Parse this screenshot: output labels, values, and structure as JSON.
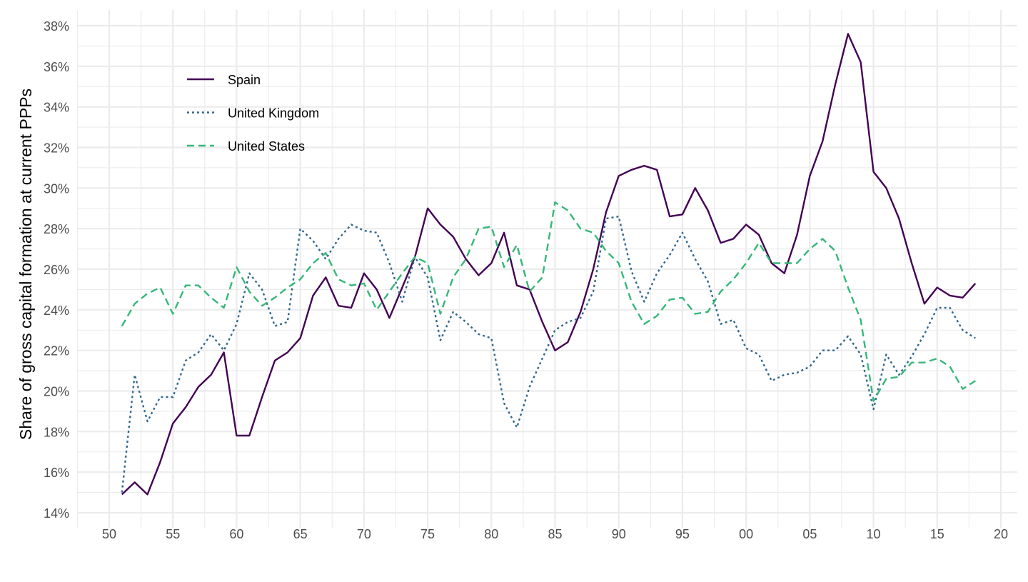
{
  "chart_data": {
    "type": "line",
    "title": "",
    "xlabel": "",
    "ylabel": "Share of gross capital formation at current PPPs",
    "xlim": [
      1948,
      2022
    ],
    "ylim": [
      14,
      38
    ],
    "grid": true,
    "legend_position": "top-left",
    "x_ticks": [
      1950,
      1955,
      1960,
      1965,
      1970,
      1975,
      1980,
      1985,
      1990,
      1995,
      2000,
      2005,
      2010,
      2015,
      2020
    ],
    "x_tick_labels": [
      "50",
      "55",
      "60",
      "65",
      "70",
      "75",
      "80",
      "85",
      "90",
      "95",
      "00",
      "05",
      "10",
      "15",
      "20"
    ],
    "y_ticks": [
      14,
      16,
      18,
      20,
      22,
      24,
      26,
      28,
      30,
      32,
      34,
      36,
      38
    ],
    "y_tick_labels": [
      "14%",
      "16%",
      "18%",
      "20%",
      "22%",
      "24%",
      "26%",
      "28%",
      "30%",
      "32%",
      "34%",
      "36%",
      "38%"
    ],
    "x_start": 1951,
    "series": [
      {
        "name": "Spain",
        "color": "#440154",
        "dash": "solid",
        "values": [
          14.9,
          15.5,
          14.9,
          16.5,
          18.4,
          19.2,
          20.2,
          20.8,
          21.9,
          17.8,
          17.8,
          19.7,
          21.5,
          21.9,
          22.6,
          24.7,
          25.6,
          24.2,
          24.1,
          25.8,
          25.0,
          23.6,
          25.1,
          26.6,
          29.0,
          28.2,
          27.6,
          26.5,
          25.7,
          26.3,
          27.8,
          25.2,
          25.0,
          23.4,
          22.0,
          22.4,
          23.9,
          26.0,
          28.8,
          30.6,
          30.9,
          31.1,
          30.9,
          28.6,
          28.7,
          30.0,
          28.9,
          27.3,
          27.5,
          28.2,
          27.7,
          26.3,
          25.8,
          27.7,
          30.6,
          32.3,
          35.1,
          37.6,
          36.2,
          30.8,
          30.0,
          28.5,
          26.3,
          24.3,
          25.1,
          24.7,
          24.6,
          25.3
        ]
      },
      {
        "name": "United Kingdom",
        "color": "#31688e",
        "dash": "dotted",
        "values": [
          15.0,
          20.8,
          18.5,
          19.7,
          19.7,
          21.5,
          21.9,
          22.8,
          22.0,
          23.3,
          25.8,
          25.0,
          23.2,
          23.4,
          28.0,
          27.4,
          26.5,
          27.5,
          28.2,
          27.9,
          27.8,
          26.3,
          24.4,
          26.6,
          25.6,
          22.5,
          23.9,
          23.4,
          22.8,
          22.6,
          19.4,
          18.2,
          20.2,
          21.6,
          23.0,
          23.4,
          23.6,
          24.9,
          28.5,
          28.6,
          25.9,
          24.4,
          25.8,
          26.7,
          27.8,
          26.5,
          25.4,
          23.3,
          23.5,
          22.1,
          21.8,
          20.5,
          20.8,
          20.9,
          21.2,
          22.0,
          22.0,
          22.7,
          21.8,
          19.1,
          21.8,
          20.8,
          21.7,
          22.8,
          24.1,
          24.1,
          23.0,
          22.6
        ]
      },
      {
        "name": "United States",
        "color": "#35b779",
        "dash": "dashed",
        "values": [
          23.2,
          24.3,
          24.8,
          25.1,
          23.8,
          25.2,
          25.2,
          24.6,
          24.1,
          26.1,
          24.9,
          24.2,
          24.6,
          25.1,
          25.5,
          26.3,
          26.8,
          25.5,
          25.2,
          25.3,
          24.0,
          24.9,
          25.8,
          26.6,
          26.3,
          23.8,
          25.6,
          26.5,
          28.0,
          28.1,
          26.1,
          27.2,
          24.9,
          25.6,
          29.3,
          28.9,
          28.0,
          27.8,
          26.9,
          26.3,
          24.4,
          23.3,
          23.7,
          24.5,
          24.6,
          23.8,
          23.9,
          24.9,
          25.5,
          26.3,
          27.3,
          26.3,
          26.3,
          26.3,
          27.0,
          27.5,
          26.9,
          25.1,
          23.5,
          19.5,
          20.6,
          20.7,
          21.4,
          21.4,
          21.6,
          21.2,
          20.1,
          20.5
        ]
      }
    ]
  }
}
